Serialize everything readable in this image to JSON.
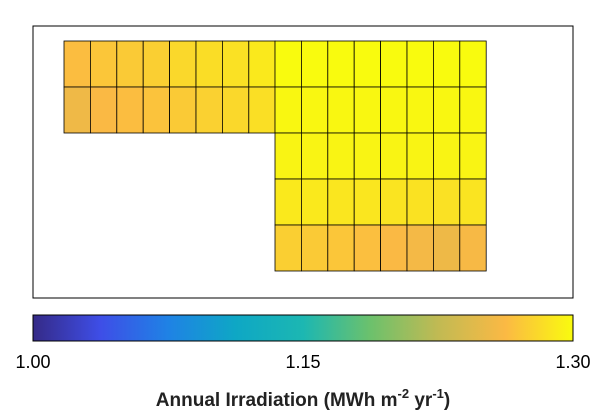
{
  "chart_data": {
    "type": "heatmap",
    "title": "",
    "colorbar": {
      "label": "Annual Irradiation (MWh m",
      "label_sup1": "-2",
      "label_mid": " yr",
      "label_sup2": "-1",
      "label_end": ")",
      "range": [
        1.0,
        1.3
      ],
      "ticks": [
        "1.00",
        "1.15",
        "1.30"
      ],
      "colormap": "parula"
    },
    "panel_groups": [
      {
        "name": "",
        "rows": [
          [
            1.265,
            1.27,
            1.272,
            1.275,
            1.28,
            1.283,
            1.285,
            1.29
          ],
          [
            1.255,
            1.262,
            1.265,
            1.268,
            1.272,
            1.276,
            1.28,
            1.284
          ]
        ]
      },
      {
        "name": "",
        "rows": [
          [
            1.3,
            1.3,
            1.3,
            1.3,
            1.3,
            1.3,
            1.3,
            1.3
          ],
          [
            1.298,
            1.298,
            1.298,
            1.298,
            1.298,
            1.298,
            1.298,
            1.298
          ],
          [
            1.296,
            1.296,
            1.296,
            1.296,
            1.296,
            1.296,
            1.296,
            1.296
          ],
          [
            1.29,
            1.29,
            1.288,
            1.288,
            1.287,
            1.286,
            1.285,
            1.287
          ],
          [
            1.275,
            1.272,
            1.27,
            1.266,
            1.262,
            1.258,
            1.254,
            1.26
          ]
        ]
      }
    ]
  }
}
